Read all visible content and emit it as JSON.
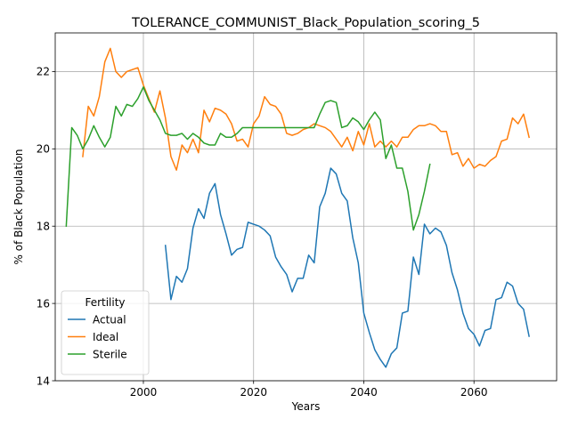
{
  "chart_data": {
    "type": "line",
    "title": "TOLERANCE_COMMUNIST_Black_Population_scoring_5",
    "xlabel": "Years",
    "ylabel": "% of Black Population",
    "xlim": [
      1984,
      2075
    ],
    "ylim": [
      14,
      23
    ],
    "xticks": [
      2000,
      2020,
      2040,
      2060
    ],
    "yticks": [
      14,
      16,
      18,
      20,
      22
    ],
    "grid": true,
    "legend": {
      "title": "Fertility",
      "placement": "lower-left"
    },
    "series": [
      {
        "name": "Actual",
        "color": "#1f77b4",
        "x": [
          2004,
          2005,
          2006,
          2007,
          2008,
          2009,
          2010,
          2011,
          2012,
          2013,
          2014,
          2015,
          2016,
          2017,
          2018,
          2019,
          2020,
          2021,
          2022,
          2023,
          2024,
          2025,
          2026,
          2027,
          2028,
          2029,
          2030,
          2031,
          2032,
          2033,
          2034,
          2035,
          2036,
          2037,
          2038,
          2039,
          2040,
          2041,
          2042,
          2043,
          2044,
          2045,
          2046,
          2047,
          2048,
          2049,
          2050,
          2051,
          2052,
          2053,
          2054,
          2055,
          2056,
          2057,
          2058,
          2059,
          2060,
          2061,
          2062,
          2063,
          2064,
          2065,
          2066,
          2067,
          2068,
          2069,
          2070
        ],
        "y": [
          17.5,
          16.1,
          16.7,
          16.55,
          16.9,
          17.95,
          18.45,
          18.2,
          18.85,
          19.1,
          18.3,
          17.8,
          17.25,
          17.4,
          17.45,
          18.1,
          18.05,
          18.0,
          17.9,
          17.75,
          17.2,
          16.95,
          16.75,
          16.3,
          16.65,
          16.65,
          17.25,
          17.05,
          18.5,
          18.85,
          19.5,
          19.35,
          18.85,
          18.65,
          17.7,
          17.05,
          15.75,
          15.25,
          14.8,
          14.55,
          14.35,
          14.7,
          14.85,
          15.75,
          15.8,
          17.2,
          16.75,
          18.05,
          17.8,
          17.95,
          17.85,
          17.5,
          16.8,
          16.35,
          15.75,
          15.35,
          15.2,
          14.9,
          15.3,
          15.35,
          16.1,
          16.15,
          16.55,
          16.45,
          16.0,
          15.85,
          15.15
        ]
      },
      {
        "name": "Ideal",
        "color": "#ff7f0e",
        "x": [
          1989,
          1990,
          1991,
          1992,
          1993,
          1994,
          1995,
          1996,
          1997,
          1998,
          1999,
          2000,
          2001,
          2002,
          2003,
          2004,
          2005,
          2006,
          2007,
          2008,
          2009,
          2010,
          2011,
          2012,
          2013,
          2014,
          2015,
          2016,
          2017,
          2018,
          2019,
          2020,
          2021,
          2022,
          2023,
          2024,
          2025,
          2026,
          2027,
          2028,
          2029,
          2030,
          2031,
          2032,
          2033,
          2034,
          2035,
          2036,
          2037,
          2038,
          2039,
          2040,
          2041,
          2042,
          2043,
          2044,
          2045,
          2046,
          2047,
          2048,
          2049,
          2050,
          2051,
          2052,
          2053,
          2054,
          2055,
          2056,
          2057,
          2058,
          2059,
          2060,
          2061,
          2062,
          2063,
          2064,
          2065,
          2066,
          2067,
          2068,
          2069,
          2070
        ],
        "y": [
          19.8,
          21.1,
          20.85,
          21.35,
          22.25,
          22.6,
          22.0,
          21.85,
          22.0,
          22.05,
          22.1,
          21.65,
          21.3,
          20.95,
          21.5,
          20.8,
          19.8,
          19.45,
          20.1,
          19.9,
          20.25,
          19.9,
          21.0,
          20.7,
          21.05,
          21.0,
          20.9,
          20.65,
          20.2,
          20.25,
          20.05,
          20.65,
          20.85,
          21.35,
          21.15,
          21.1,
          20.9,
          20.4,
          20.35,
          20.4,
          20.5,
          20.55,
          20.65,
          20.6,
          20.55,
          20.45,
          20.25,
          20.05,
          20.3,
          19.95,
          20.45,
          20.1,
          20.65,
          20.05,
          20.2,
          20.05,
          20.2,
          20.05,
          20.3,
          20.3,
          20.5,
          20.6,
          20.6,
          20.65,
          20.6,
          20.45,
          20.45,
          19.85,
          19.9,
          19.55,
          19.75,
          19.5,
          19.6,
          19.55,
          19.7,
          19.8,
          20.2,
          20.25,
          20.8,
          20.65,
          20.9,
          20.3
        ]
      },
      {
        "name": "Sterile",
        "color": "#2ca02c",
        "x": [
          1986,
          1987,
          1988,
          1989,
          1990,
          1991,
          1992,
          1993,
          1994,
          1995,
          1996,
          1997,
          1998,
          1999,
          2000,
          2001,
          2002,
          2003,
          2004,
          2005,
          2006,
          2007,
          2008,
          2009,
          2010,
          2011,
          2012,
          2013,
          2014,
          2015,
          2016,
          2017,
          2018,
          2019,
          2020,
          2021,
          2022,
          2023,
          2024,
          2025,
          2026,
          2027,
          2028,
          2029,
          2030,
          2031,
          2032,
          2033,
          2034,
          2035,
          2036,
          2037,
          2038,
          2039,
          2040,
          2041,
          2042,
          2043,
          2044,
          2045,
          2046,
          2047,
          2048,
          2049,
          2050,
          2051,
          2052
        ],
        "y": [
          18.0,
          20.55,
          20.35,
          20.0,
          20.25,
          20.6,
          20.3,
          20.05,
          20.3,
          21.1,
          20.85,
          21.15,
          21.1,
          21.3,
          21.6,
          21.25,
          21.0,
          20.75,
          20.4,
          20.35,
          20.35,
          20.4,
          20.25,
          20.4,
          20.3,
          20.15,
          20.1,
          20.1,
          20.4,
          20.3,
          20.3,
          20.4,
          20.55,
          20.55,
          20.55,
          20.55,
          20.55,
          20.55,
          20.55,
          20.55,
          20.55,
          20.55,
          20.55,
          20.55,
          20.55,
          20.55,
          20.9,
          21.2,
          21.25,
          21.2,
          20.55,
          20.6,
          20.8,
          20.7,
          20.5,
          20.75,
          20.95,
          20.75,
          19.75,
          20.1,
          19.5,
          19.5,
          18.9,
          17.9,
          18.3,
          18.9,
          19.6
        ]
      }
    ]
  }
}
